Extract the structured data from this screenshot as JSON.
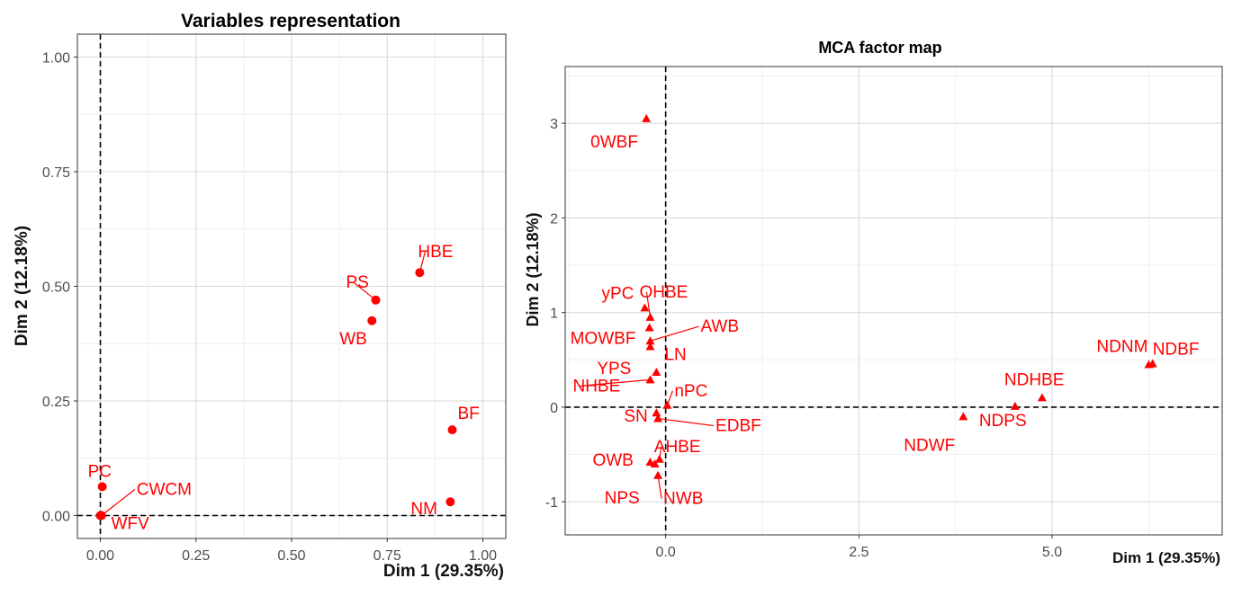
{
  "chart_data": [
    {
      "type": "scatter",
      "title": "Variables representation",
      "xlabel": "Dim 1 (29.35%)",
      "ylabel": "Dim 2 (12.18%)",
      "xlim": [
        -0.06,
        1.06
      ],
      "ylim": [
        -0.05,
        1.05
      ],
      "xticks": [
        0.0,
        0.25,
        0.5,
        0.75,
        1.0
      ],
      "yticks": [
        0.0,
        0.25,
        0.5,
        0.75,
        1.0
      ],
      "xtick_labels": [
        "0.00",
        "0.25",
        "0.50",
        "0.75",
        "1.00"
      ],
      "ytick_labels": [
        "0.00",
        "0.25",
        "0.50",
        "0.75",
        "1.00"
      ],
      "grid": true,
      "marker": "circle",
      "color": "#ff0000",
      "points": [
        {
          "label": "HBE",
          "x": 0.835,
          "y": 0.53
        },
        {
          "label": "PS",
          "x": 0.72,
          "y": 0.47
        },
        {
          "label": "WB",
          "x": 0.71,
          "y": 0.425
        },
        {
          "label": "BF",
          "x": 0.92,
          "y": 0.187
        },
        {
          "label": "NM",
          "x": 0.915,
          "y": 0.03
        },
        {
          "label": "PC",
          "x": 0.005,
          "y": 0.063
        },
        {
          "label": "CWCM",
          "x": 0.003,
          "y": 0.0
        },
        {
          "label": "WFV",
          "x": 0.0,
          "y": 0.0
        }
      ]
    },
    {
      "type": "scatter",
      "title": "MCA factor map",
      "xlabel": "Dim 1 (29.35%)",
      "ylabel": "Dim 2 (12.18%)",
      "xlim": [
        -1.3,
        7.2
      ],
      "ylim": [
        -1.35,
        3.6
      ],
      "xticks": [
        0.0,
        2.5,
        5.0
      ],
      "yticks": [
        -1,
        0,
        1,
        2,
        3
      ],
      "xtick_labels": [
        "0.0",
        "2.5",
        "5.0"
      ],
      "ytick_labels": [
        "-1",
        "0",
        "1",
        "2",
        "3"
      ],
      "grid": true,
      "marker": "triangle",
      "color": "#ff0000",
      "points": [
        {
          "label": "0WBF",
          "x": -0.25,
          "y": 3.05
        },
        {
          "label": "yPC",
          "x": -0.27,
          "y": 1.05
        },
        {
          "label": "OHBE",
          "x": -0.2,
          "y": 0.95
        },
        {
          "label": "MOWBF",
          "x": -0.21,
          "y": 0.84
        },
        {
          "label": "AWB",
          "x": -0.2,
          "y": 0.7
        },
        {
          "label": "LN",
          "x": -0.2,
          "y": 0.64
        },
        {
          "label": "YPS",
          "x": -0.12,
          "y": 0.37
        },
        {
          "label": "NHBE",
          "x": -0.2,
          "y": 0.29
        },
        {
          "label": "nPC",
          "x": 0.02,
          "y": 0.02
        },
        {
          "label": "SN",
          "x": -0.12,
          "y": -0.06
        },
        {
          "label": "EDBF",
          "x": -0.1,
          "y": -0.12
        },
        {
          "label": "AHBE",
          "x": -0.08,
          "y": -0.55
        },
        {
          "label": "OWB",
          "x": -0.2,
          "y": -0.58
        },
        {
          "label": "NPS",
          "x": -0.14,
          "y": -0.6
        },
        {
          "label": "NWB",
          "x": -0.1,
          "y": -0.72
        },
        {
          "label": "NDBF",
          "x": 6.3,
          "y": 0.46
        },
        {
          "label": "NDHBE",
          "x": 4.87,
          "y": 0.1
        },
        {
          "label": "NDNM",
          "x": 6.25,
          "y": 0.45
        },
        {
          "label": "NDPS",
          "x": 4.52,
          "y": 0.01
        },
        {
          "label": "NDWF",
          "x": 3.85,
          "y": -0.1
        }
      ]
    }
  ]
}
